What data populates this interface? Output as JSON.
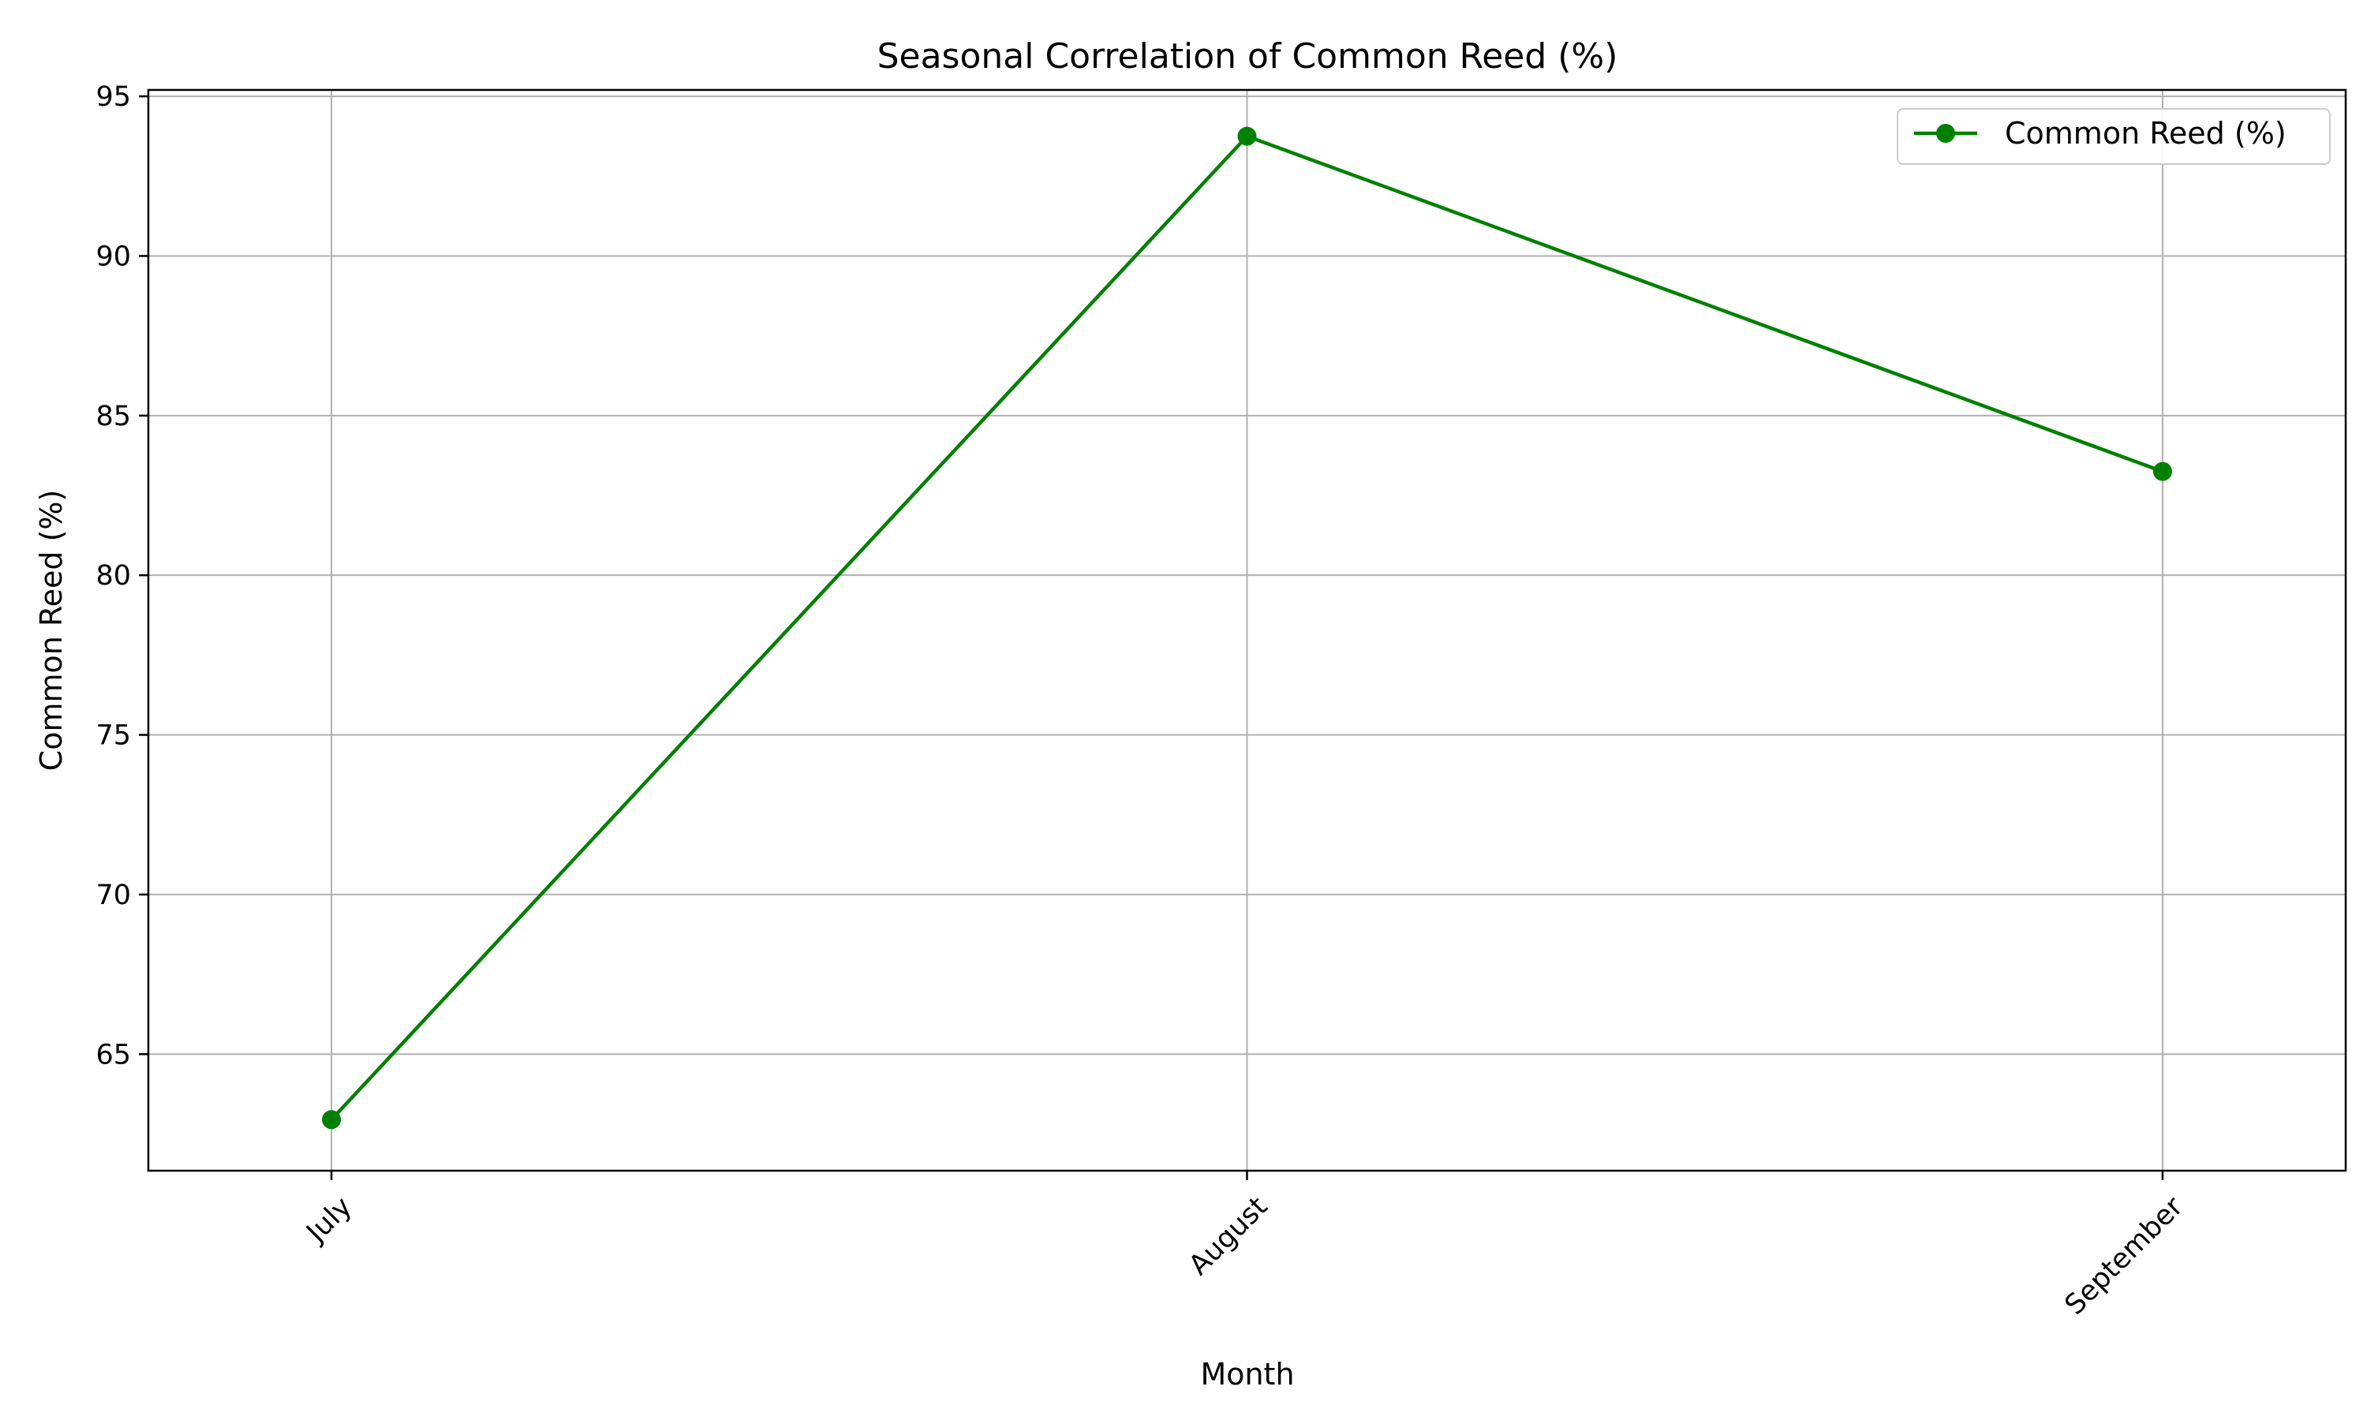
{
  "chart_data": {
    "type": "line",
    "title": "Seasonal Correlation of Common Reed (%)",
    "xlabel": "Month",
    "ylabel": "Common Reed (%)",
    "categories": [
      "July",
      "August",
      "September"
    ],
    "series": [
      {
        "name": "Common Reed (%)",
        "values": [
          62.95,
          93.75,
          83.25
        ],
        "color": "#008000",
        "marker": "circle"
      }
    ],
    "ylim": [
      61.35,
      95.2
    ],
    "yticks": [
      65,
      70,
      75,
      80,
      85,
      90,
      95
    ],
    "x_tick_rotation": -45,
    "grid": true,
    "grid_color": "#b0b0b0",
    "legend": "top-right"
  }
}
